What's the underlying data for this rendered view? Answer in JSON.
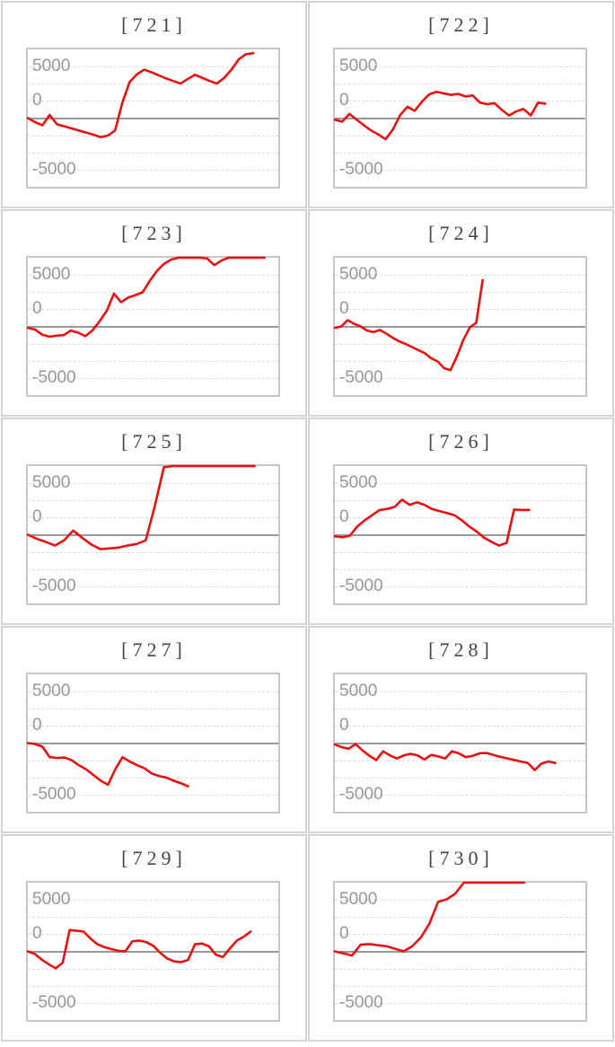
{
  "page": {
    "description": "Grid of ten slump line charts labeled by machine number",
    "background": "#ffffff"
  },
  "axis": {
    "labels": {
      "top": "5000",
      "zero": "0",
      "bottom": "-5000"
    },
    "ylim": [
      -6667,
      6667
    ],
    "yticks": [
      5000,
      0,
      -5000
    ],
    "grid": "dashed horizontal lines every eighth of plot height, solid gray line at zero"
  },
  "colors": {
    "line": "#e81010",
    "grid_dotted": "#dcdcdc",
    "zero_line": "#999999",
    "plot_border": "#c6c6c6",
    "cell_border": "#d4d4d4",
    "title_text": "#454545",
    "axis_text": "#94979e"
  },
  "chart_data": [
    {
      "type": "line",
      "title": "[721]",
      "ylim": [
        -6667,
        6667
      ],
      "yticks": [
        5000,
        0,
        -5000
      ],
      "legend": "none",
      "x_end_fraction": 0.9,
      "values": [
        0,
        -400,
        -700,
        300,
        -600,
        -800,
        -1000,
        -1200,
        -1400,
        -1600,
        -1850,
        -1700,
        -1200,
        1500,
        3500,
        4250,
        4700,
        4450,
        4150,
        3850,
        3600,
        3350,
        3800,
        4200,
        3900,
        3600,
        3350,
        3900,
        4700,
        5700,
        6200,
        6300
      ]
    },
    {
      "type": "line",
      "title": "[722]",
      "ylim": [
        -6667,
        6667
      ],
      "yticks": [
        5000,
        0,
        -5000
      ],
      "legend": "none",
      "x_end_fraction": 0.84,
      "values": [
        -150,
        -350,
        400,
        -150,
        -700,
        -1200,
        -1600,
        -2050,
        -1100,
        300,
        1100,
        700,
        1600,
        2300,
        2550,
        2400,
        2250,
        2350,
        2100,
        2200,
        1500,
        1350,
        1450,
        800,
        250,
        650,
        880,
        250,
        1500,
        1400
      ]
    },
    {
      "type": "line",
      "title": "[723]",
      "ylim": [
        -6667,
        6667
      ],
      "yticks": [
        5000,
        0,
        -5000
      ],
      "legend": "none",
      "x_end_fraction": 0.945,
      "values": [
        -150,
        -300,
        -800,
        -1000,
        -900,
        -850,
        -400,
        -600,
        -950,
        -400,
        500,
        1500,
        3180,
        2350,
        2800,
        3040,
        3310,
        4420,
        5390,
        6080,
        6490,
        6667,
        6667,
        6667,
        6667,
        6600,
        5940,
        6400,
        6667,
        6667,
        6667,
        6667,
        6667,
        6667
      ]
    },
    {
      "type": "line",
      "title": "[724]",
      "ylim": [
        -6667,
        6667
      ],
      "yticks": [
        5000,
        0,
        -5000
      ],
      "legend": "none",
      "x_end_fraction": 0.59,
      "values": [
        -150,
        0,
        600,
        250,
        0,
        -400,
        -550,
        -350,
        -700,
        -1100,
        -1450,
        -1700,
        -2000,
        -2300,
        -2600,
        -3100,
        -3400,
        -4050,
        -4250,
        -2900,
        -1300,
        -100,
        350,
        4500
      ]
    },
    {
      "type": "line",
      "title": "[725]",
      "ylim": [
        -6667,
        6667
      ],
      "yticks": [
        5000,
        0,
        -5000
      ],
      "legend": "none",
      "x_end_fraction": 0.905,
      "values": [
        0,
        -400,
        -700,
        -1050,
        -550,
        400,
        -300,
        -950,
        -1400,
        -1330,
        -1250,
        -1050,
        -900,
        -550,
        2760,
        6550,
        6667,
        6667,
        6667,
        6667,
        6667,
        6667,
        6667,
        6667,
        6667,
        6667
      ]
    },
    {
      "type": "line",
      "title": "[726]",
      "ylim": [
        -6667,
        6667
      ],
      "yticks": [
        5000,
        0,
        -5000
      ],
      "legend": "none",
      "x_end_fraction": 0.775,
      "values": [
        -150,
        -250,
        -100,
        800,
        1400,
        1900,
        2400,
        2500,
        2700,
        3400,
        2900,
        3150,
        2900,
        2500,
        2300,
        2100,
        1900,
        1400,
        800,
        300,
        -300,
        -700,
        -1050,
        -800,
        2450,
        2400,
        2400
      ]
    },
    {
      "type": "line",
      "title": "[727]",
      "ylim": [
        -6667,
        6667
      ],
      "yticks": [
        5000,
        0,
        -5000
      ],
      "legend": "none",
      "x_end_fraction": 0.64,
      "values": [
        0,
        -100,
        -350,
        -1370,
        -1450,
        -1400,
        -1650,
        -2150,
        -2550,
        -3100,
        -3650,
        -4050,
        -2550,
        -1370,
        -1800,
        -2150,
        -2450,
        -2950,
        -3200,
        -3350,
        -3650,
        -3900,
        -4200
      ]
    },
    {
      "type": "line",
      "title": "[728]",
      "ylim": [
        -6667,
        6667
      ],
      "yticks": [
        5000,
        0,
        -5000
      ],
      "legend": "none",
      "x_end_fraction": 0.88,
      "values": [
        -150,
        -400,
        -550,
        -100,
        -700,
        -1230,
        -1650,
        -800,
        -1200,
        -1500,
        -1200,
        -1050,
        -1200,
        -1600,
        -1150,
        -1300,
        -1500,
        -800,
        -1000,
        -1370,
        -1240,
        -1000,
        -960,
        -1150,
        -1330,
        -1490,
        -1640,
        -1800,
        -1930,
        -2620,
        -1990,
        -1790,
        -1940
      ]
    },
    {
      "type": "line",
      "title": "[729]",
      "ylim": [
        -6667,
        6667
      ],
      "yticks": [
        5000,
        0,
        -5000
      ],
      "legend": "none",
      "x_end_fraction": 0.89,
      "values": [
        0,
        -250,
        -800,
        -1250,
        -1650,
        -1100,
        2070,
        2000,
        1930,
        1240,
        690,
        410,
        220,
        50,
        0,
        970,
        1050,
        900,
        550,
        -140,
        -690,
        -970,
        -1050,
        -830,
        690,
        760,
        500,
        -330,
        -550,
        280,
        1050,
        1430,
        1930
      ]
    },
    {
      "type": "line",
      "title": "[730]",
      "ylim": [
        -6667,
        6667
      ],
      "yticks": [
        5000,
        0,
        -5000
      ],
      "legend": "none",
      "x_end_fraction": 0.755,
      "values": [
        0,
        -200,
        -400,
        650,
        700,
        600,
        500,
        250,
        0,
        500,
        1350,
        2700,
        4800,
        5050,
        5600,
        6667,
        6667,
        6667,
        6667,
        6667,
        6667,
        6667,
        6667
      ]
    }
  ]
}
